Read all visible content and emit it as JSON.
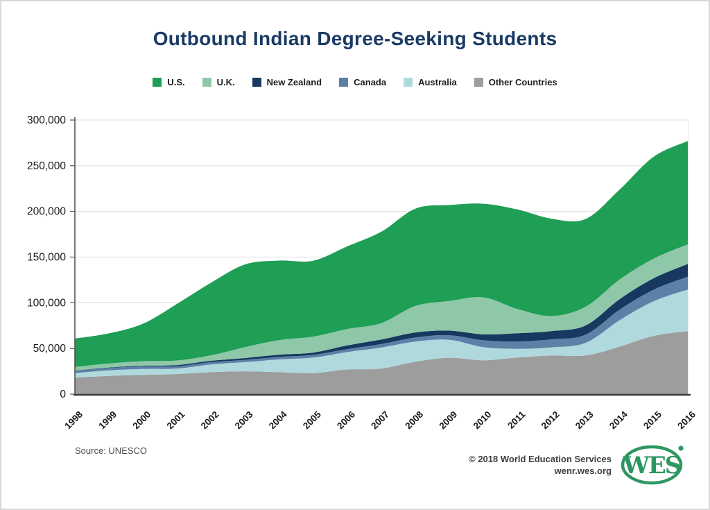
{
  "title": "Outbound Indian Degree-Seeking Students",
  "footer": {
    "source": "Source: UNESCO",
    "copyright": "© 2018 World Education Services",
    "website": "wenr.wes.org",
    "logo_text": "WES"
  },
  "colors": {
    "title": "#1a3a64",
    "gridline": "#e4e4e4",
    "axis": "#3c3c3c",
    "tick_text": "#1a1a1a",
    "logo_green": "#2c9760"
  },
  "chart_data": {
    "type": "area",
    "stacked": true,
    "title": "Outbound Indian Degree-Seeking Students",
    "x": [
      1998,
      1999,
      2000,
      2001,
      2002,
      2003,
      2004,
      2005,
      2006,
      2007,
      2008,
      2009,
      2010,
      2011,
      2012,
      2013,
      2014,
      2015,
      2016
    ],
    "xlabel": "",
    "ylabel": "",
    "ylim": [
      0,
      300000
    ],
    "ytick_values": [
      0,
      50000,
      100000,
      150000,
      200000,
      250000,
      300000
    ],
    "ytick_labels": [
      "0",
      "50,000",
      "100,000",
      "150,000",
      "200,000",
      "250,000",
      "300,000"
    ],
    "grid": "horizontal",
    "legend_position": "top",
    "stack_order_bottom_to_top": [
      "Other Countries",
      "Australia",
      "Canada",
      "New Zealand",
      "U.K.",
      "U.S."
    ],
    "series": [
      {
        "name": "U.S.",
        "color": "#1f9e55",
        "values": [
          31000,
          33000,
          41000,
          62000,
          79500,
          90500,
          87000,
          83000,
          90500,
          100000,
          106500,
          105000,
          102500,
          109000,
          106500,
          96000,
          98500,
          111500,
          113000
        ]
      },
      {
        "name": "U.K.",
        "color": "#8fc8a9",
        "values": [
          4000,
          4300,
          5000,
          5000,
          6000,
          12000,
          16000,
          17500,
          18000,
          18000,
          29000,
          32500,
          40500,
          26500,
          16500,
          20500,
          21500,
          21500,
          21500
        ]
      },
      {
        "name": "New Zealand",
        "color": "#17385f",
        "values": [
          300,
          500,
          800,
          1300,
          1500,
          2000,
          2500,
          2500,
          4000,
          5000,
          5500,
          5000,
          6500,
          9000,
          9000,
          10000,
          11500,
          12500,
          14000
        ]
      },
      {
        "name": "Canada",
        "color": "#5c81a7",
        "values": [
          2500,
          2700,
          2800,
          2500,
          2500,
          2500,
          2700,
          3000,
          3300,
          3800,
          4500,
          5000,
          7500,
          8000,
          8800,
          9000,
          11500,
          12600,
          14000
        ]
      },
      {
        "name": "Australia",
        "color": "#afd9dd",
        "values": [
          5000,
          6000,
          6500,
          6000,
          8500,
          10000,
          14000,
          17000,
          19000,
          23000,
          22000,
          19700,
          14400,
          9600,
          8900,
          13900,
          29000,
          38000,
          45500
        ]
      },
      {
        "name": "Other Countries",
        "color": "#9d9d9d",
        "values": [
          18000,
          20000,
          21000,
          22000,
          24000,
          25000,
          24000,
          23000,
          27000,
          28000,
          35500,
          39800,
          37000,
          40000,
          42300,
          42300,
          52000,
          63800,
          69000
        ]
      }
    ]
  }
}
